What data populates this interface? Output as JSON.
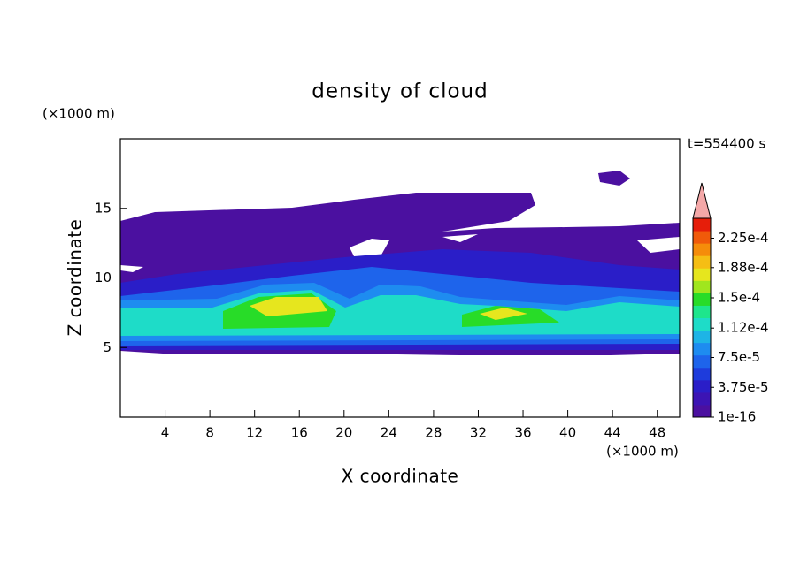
{
  "chart_data": {
    "type": "contour",
    "title": "density of cloud",
    "x_label": "X coordinate",
    "y_label": "Z coordinate",
    "x_unit": "(×1000 m)",
    "y_unit": "(×1000 m)",
    "annotation": "t=554400 s",
    "xlim": [
      0,
      50
    ],
    "xticks": [
      4,
      8,
      12,
      16,
      20,
      24,
      28,
      32,
      36,
      40,
      44,
      48
    ],
    "ylim": [
      0,
      20
    ],
    "yticks": [
      5,
      10,
      15
    ],
    "colorbar": {
      "clim": [
        1e-16,
        0.00025
      ],
      "colors": [
        "#4b10a0",
        "#3c14b4",
        "#2a1ec8",
        "#1e3cdc",
        "#1e64eb",
        "#1e8cf0",
        "#1eb4e6",
        "#1edcc8",
        "#1ee68c",
        "#28dc28",
        "#a0e61e",
        "#e6e61e",
        "#f5be14",
        "#f58c0a",
        "#f05a0a",
        "#e61e0a"
      ],
      "extend_color": "#f4a8a8",
      "ticks": [
        {
          "value": 1e-16,
          "label": "1e-16"
        },
        {
          "value": 3.75e-05,
          "label": "3.75e-5"
        },
        {
          "value": 7.5e-05,
          "label": "7.5e-5"
        },
        {
          "value": 0.000112,
          "label": "1.12e-4"
        },
        {
          "value": 0.00015,
          "label": "1.5e-4"
        },
        {
          "value": 0.000188,
          "label": "1.88e-4"
        },
        {
          "value": 0.000225,
          "label": "2.25e-4"
        }
      ]
    }
  }
}
